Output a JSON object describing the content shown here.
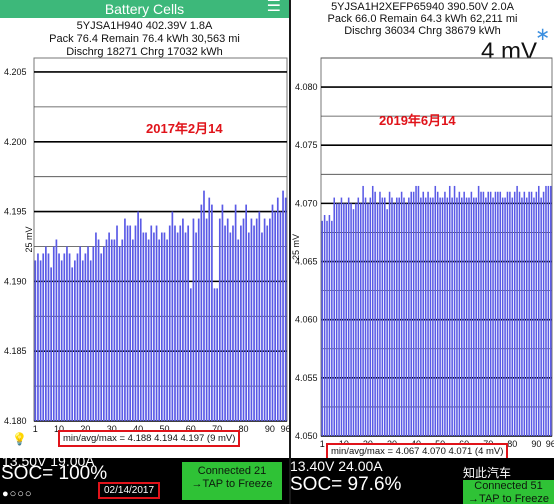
{
  "left": {
    "title": "Battery Cells",
    "menu_icon": "menu-icon",
    "header": {
      "line1": "5YJSA1H940 402.39V 1.8A",
      "line2": "Pack 76.4 Remain 76.4 kWh   30,563 mi",
      "line3": "Dischrg 18271 Chrg 17032 kWh"
    },
    "annotation": "2017年2月14",
    "stats": "min/avg/max = 4.188 4.194 4.197  (9 mV)",
    "voltage_current": "13.50V 19.00A",
    "soc": "SOC= 100%",
    "connected": [
      "Connected 21",
      "→TAP to Freeze"
    ],
    "date": "02/14/2017",
    "bottom_icon": "lightbulb-icon"
  },
  "right": {
    "header": {
      "line1": "5YJSA1H2XEFP65940 390.50V 2.0A",
      "line2": "Pack 66.0 Remain 64.3 kWh   62,211 mi",
      "line3": "Dischrg 36034 Chrg 38679 kWh"
    },
    "bluetooth_icon": "bluetooth-icon",
    "mv_label": "4 mV",
    "annotation": "2019年6月14",
    "stats": "min/avg/max = 4.067 4.070 4.071  (4 mV)",
    "voltage_current": "13.40V 24.00A",
    "soc": "SOC= 97.6%",
    "connected": [
      "Connected 51",
      "→TAP to Freeze"
    ],
    "watermark": "知此汽车"
  },
  "colors": {
    "bar": "#5a5ae6",
    "titlebar": "#3db87a",
    "annotation": "#e0131a",
    "connected": "#2fc236"
  },
  "chart_data": [
    {
      "type": "bar",
      "ylabel": "25 mV",
      "ylim": [
        4.18,
        4.206
      ],
      "yticks": [
        4.18,
        4.185,
        4.19,
        4.195,
        4.2,
        4.205
      ],
      "xticks": [
        1,
        10,
        20,
        30,
        40,
        50,
        60,
        70,
        80,
        90,
        96
      ],
      "values": [
        4.1915,
        4.192,
        4.1915,
        4.192,
        4.1925,
        4.192,
        4.191,
        4.1925,
        4.193,
        4.192,
        4.1915,
        4.192,
        4.1925,
        4.192,
        4.191,
        4.1915,
        4.192,
        4.1925,
        4.1915,
        4.192,
        4.1925,
        4.1915,
        4.1925,
        4.1935,
        4.193,
        4.192,
        4.1925,
        4.193,
        4.1935,
        4.193,
        4.193,
        4.194,
        4.1925,
        4.193,
        4.1945,
        4.194,
        4.194,
        4.193,
        4.194,
        4.195,
        4.1945,
        4.1935,
        4.1935,
        4.193,
        4.194,
        4.1935,
        4.194,
        4.193,
        4.1935,
        4.1935,
        4.193,
        4.194,
        4.195,
        4.194,
        4.1935,
        4.194,
        4.1945,
        4.1935,
        4.194,
        4.1895,
        4.1945,
        4.1935,
        4.1945,
        4.1955,
        4.1965,
        4.1945,
        4.196,
        4.1955,
        4.1895,
        4.1895,
        4.1945,
        4.1955,
        4.194,
        4.1945,
        4.1935,
        4.194,
        4.1955,
        4.193,
        4.194,
        4.1945,
        4.1955,
        4.1935,
        4.1945,
        4.194,
        4.1945,
        4.195,
        4.1935,
        4.1945,
        4.194,
        4.1945,
        4.1955,
        4.195,
        4.196,
        4.195,
        4.1965,
        4.196
      ]
    },
    {
      "type": "bar",
      "ylabel": "25 mV",
      "ylim": [
        4.05,
        4.0825
      ],
      "yticks": [
        4.05,
        4.055,
        4.06,
        4.065,
        4.07,
        4.075,
        4.08
      ],
      "xticks": [
        1,
        10,
        20,
        30,
        40,
        50,
        60,
        70,
        80,
        90,
        96
      ],
      "values": [
        4.0685,
        4.069,
        4.0685,
        4.069,
        4.0685,
        4.0705,
        4.07,
        4.07,
        4.0705,
        4.07,
        4.07,
        4.0705,
        4.07,
        4.0695,
        4.07,
        4.0705,
        4.07,
        4.0715,
        4.0705,
        4.07,
        4.0705,
        4.0715,
        4.071,
        4.07,
        4.071,
        4.0705,
        4.0705,
        4.0695,
        4.071,
        4.0705,
        4.07,
        4.0705,
        4.0705,
        4.071,
        4.0705,
        4.07,
        4.0705,
        4.071,
        4.071,
        4.0715,
        4.0715,
        4.0705,
        4.071,
        4.0705,
        4.071,
        4.0705,
        4.0705,
        4.0715,
        4.071,
        4.0705,
        4.0705,
        4.071,
        4.0705,
        4.0715,
        4.0705,
        4.0715,
        4.0705,
        4.071,
        4.0705,
        4.071,
        4.0705,
        4.0705,
        4.071,
        4.0705,
        4.0705,
        4.0715,
        4.071,
        4.071,
        4.0705,
        4.071,
        4.071,
        4.0705,
        4.071,
        4.071,
        4.071,
        4.0705,
        4.0705,
        4.071,
        4.071,
        4.0705,
        4.071,
        4.0715,
        4.071,
        4.0705,
        4.071,
        4.0705,
        4.071,
        4.071,
        4.0705,
        4.071,
        4.0715,
        4.0705,
        4.071,
        4.0715,
        4.0715,
        4.0715
      ]
    }
  ]
}
